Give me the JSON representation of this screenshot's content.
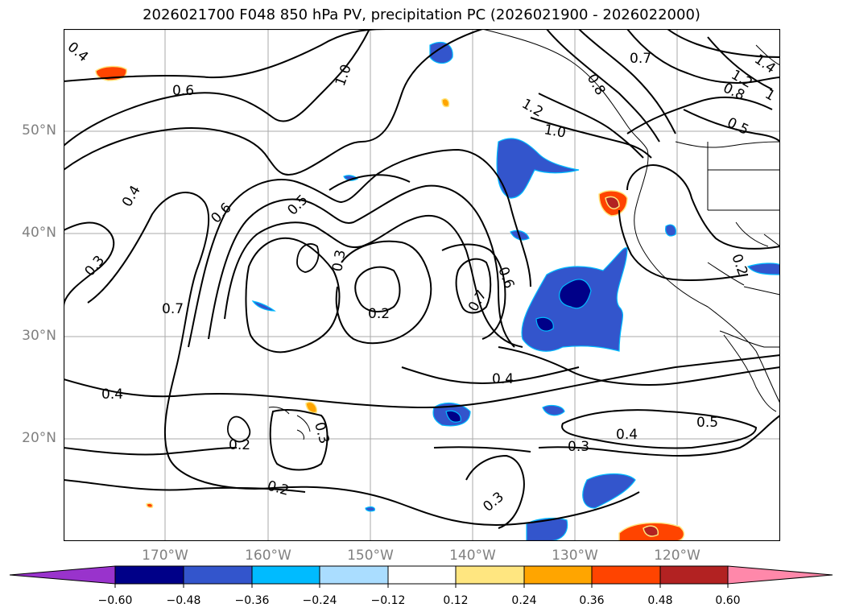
{
  "title": "2026021700 F048 850 hPa PV, precipitation PC (2026021900 - 2026022000)",
  "latitude_labels": [
    "50°N",
    "40°N",
    "30°N",
    "20°N"
  ],
  "longitude_labels": [
    "170°W",
    "160°W",
    "150°W",
    "140°W",
    "130°W",
    "120°W"
  ],
  "contour_labels": [
    "0.4",
    "0.6",
    "1.0",
    "1.2",
    "1.0",
    "0.8",
    "0.7",
    "1.2",
    "1.4",
    "0.8",
    "0.5",
    "1",
    "0.4",
    "0.6",
    "0.5",
    "0.3",
    "0.3",
    "0.7",
    "0.2",
    "0.6",
    "0.7",
    "0.4",
    "0.4",
    "0.2",
    "0.3",
    "0.2",
    "0.3",
    "0.3",
    "0.4",
    "0.5",
    "0.2"
  ],
  "colorbar": {
    "ticks": [
      "−0.60",
      "−0.48",
      "−0.36",
      "−0.24",
      "−0.12",
      "0.12",
      "0.24",
      "0.36",
      "0.48",
      "0.60"
    ],
    "colors": [
      "#9933cc",
      "#000088",
      "#3355cc",
      "#00bbff",
      "#aaddff",
      "#ffffff",
      "#ffe680",
      "#ffa500",
      "#ff4400",
      "#b22222",
      "#ff88aa"
    ]
  },
  "chart_data": {
    "type": "map",
    "region": "North-East Pacific",
    "lat_range": [
      10,
      60
    ],
    "lon_range": [
      -180,
      -110
    ],
    "fields": [
      "850 hPa PV (contours)",
      "precipitation PC (shaded)"
    ]
  }
}
